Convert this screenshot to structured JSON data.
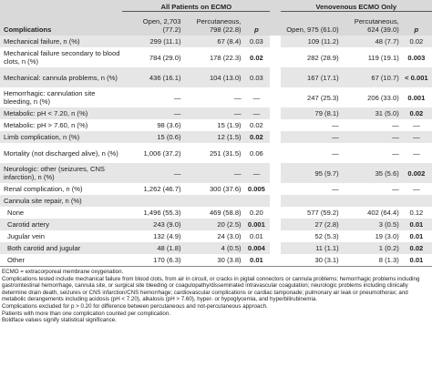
{
  "headers": {
    "group_all": "All Patients on ECMO",
    "group_veno": "Venovenous ECMO Only",
    "complications": "Complications",
    "open_all": "Open, 2,703 (77.2)",
    "perc_all": "Percutaneous, 798 (22.8)",
    "p": "p",
    "open_veno": "Open, 975 (61.0)",
    "perc_veno": "Percutaneous, 624 (39.0)"
  },
  "rows": [
    {
      "label": "Mechanical failure, n (%)",
      "a": "299 (11.1)",
      "b": "67 (8.4)",
      "p1": "0.03",
      "p1b": false,
      "c": "109 (11.2)",
      "d": "48 (7.7)",
      "p2": "0.02",
      "p2b": false,
      "shade": true,
      "h": 1
    },
    {
      "label": "Mechanical failure secondary to blood clots, n (%)",
      "a": "784 (29.0)",
      "b": "178 (22.3)",
      "p1": "0.02",
      "p1b": true,
      "c": "282 (28.9)",
      "d": "119 (19.1)",
      "p2": "0.003",
      "p2b": true,
      "shade": false,
      "h": 2
    },
    {
      "label": "Mechanical: cannula problems, n (%)",
      "a": "436 (16.1)",
      "b": "104 (13.0)",
      "p1": "0.03",
      "p1b": false,
      "c": "167 (17.1)",
      "d": "67 (10.7)",
      "p2": "< 0.001",
      "p2b": true,
      "shade": true,
      "h": 2
    },
    {
      "label": "Hemorrhagic: cannulation site bleeding, n (%)",
      "a": "—",
      "b": "—",
      "p1": "—",
      "p1b": false,
      "c": "247 (25.3)",
      "d": "206 (33.0)",
      "p2": "0.001",
      "p2b": true,
      "shade": false,
      "h": 2
    },
    {
      "label": "Metabolic: pH < 7.20, n (%)",
      "a": "—",
      "b": "—",
      "p1": "—",
      "p1b": false,
      "c": "79 (8.1)",
      "d": "31 (5.0)",
      "p2": "0.02",
      "p2b": true,
      "shade": true,
      "h": 1
    },
    {
      "label": "Metabolic: pH > 7.60, n (%)",
      "a": "98 (3.6)",
      "b": "15 (1.9)",
      "p1": "0.02",
      "p1b": false,
      "c": "—",
      "d": "—",
      "p2": "—",
      "p2b": false,
      "shade": false,
      "h": 1
    },
    {
      "label": "Limb complication, n (%)",
      "a": "15 (0.6)",
      "b": "12 (1.5)",
      "p1": "0.02",
      "p1b": true,
      "c": "—",
      "d": "—",
      "p2": "—",
      "p2b": false,
      "shade": true,
      "h": 1
    },
    {
      "label": "Mortality (not discharged alive), n (%)",
      "a": "1,006 (37.2)",
      "b": "251 (31.5)",
      "p1": "0.06",
      "p1b": false,
      "c": "—",
      "d": "—",
      "p2": "—",
      "p2b": false,
      "shade": false,
      "h": 2
    },
    {
      "label": "Neurologic: other (seizures, CNS infarction), n (%)",
      "a": "—",
      "b": "—",
      "p1": "—",
      "p1b": false,
      "c": "95 (9.7)",
      "d": "35 (5.6)",
      "p2": "0.002",
      "p2b": true,
      "shade": true,
      "h": 2
    },
    {
      "label": "Renal complication, n (%)",
      "a": "1,262 (46.7)",
      "b": "300 (37.6)",
      "p1": "0.005",
      "p1b": true,
      "c": "—",
      "d": "—",
      "p2": "—",
      "p2b": false,
      "shade": false,
      "h": 1
    },
    {
      "label": "Cannula site repair, n (%)",
      "a": "",
      "b": "",
      "p1": "",
      "p1b": false,
      "c": "",
      "d": "",
      "p2": "",
      "p2b": false,
      "shade": true,
      "h": 1
    },
    {
      "label": "None",
      "a": "1,496 (55.3)",
      "b": "469 (58.8)",
      "p1": "0.20",
      "p1b": false,
      "c": "577 (59.2)",
      "d": "402 (64.4)",
      "p2": "0.12",
      "p2b": false,
      "shade": false,
      "h": 1,
      "indent": true
    },
    {
      "label": "Carotid artery",
      "a": "243 (9.0)",
      "b": "20 (2.5)",
      "p1": "0.001",
      "p1b": true,
      "c": "27 (2.8)",
      "d": "3 (0.5)",
      "p2": "0.01",
      "p2b": true,
      "shade": true,
      "h": 1,
      "indent": true
    },
    {
      "label": "Jugular vein",
      "a": "132 (4.9)",
      "b": "24 (3.0)",
      "p1": "0.01",
      "p1b": false,
      "c": "52 (5.3)",
      "d": "19 (3.0)",
      "p2": "0.01",
      "p2b": true,
      "shade": false,
      "h": 1,
      "indent": true
    },
    {
      "label": "Both carotid and jugular",
      "a": "48 (1.8)",
      "b": "4 (0.5)",
      "p1": "0.004",
      "p1b": true,
      "c": "11 (1.1)",
      "d": "1 (0.2)",
      "p2": "0.02",
      "p2b": true,
      "shade": true,
      "h": 1,
      "indent": true
    },
    {
      "label": "Other",
      "a": "170 (6.3)",
      "b": "30 (3.8)",
      "p1": "0.01",
      "p1b": true,
      "c": "30 (3.1)",
      "d": "8 (1.3)",
      "p2": "0.01",
      "p2b": true,
      "shade": false,
      "h": 1,
      "indent": true
    }
  ],
  "footnotes": [
    "ECMO = extracorporeal membrane oxygenation.",
    "Complications tested include mechanical failure from blood clots, from air in circuit, or cracks in pigtail connectors or cannula problems; hemorrhagic problems including gastrointestinal hemorrhage, cannula site, or surgical site bleeding or coagulopathy/disseminated intravascular coagulation; neurologic problems including clinically determine drain death, seizures or CNS infarction/CNS hemorrhage; cardiovascular complications or cardiac tamponade; pulmonary air leak or pneumothorax; and metabolic derangements including acidosis (pH < 7.20), alkalosis (pH > 7.60), hyper- or hypoglycemia, and hyperbilirubinemia.",
    "Complications excluded for p > 0.20 for difference between percutaneous and not-percutaneous approach.",
    "Patients with more than one complication counted per complication.",
    "Boldface values signify statistical significance."
  ]
}
